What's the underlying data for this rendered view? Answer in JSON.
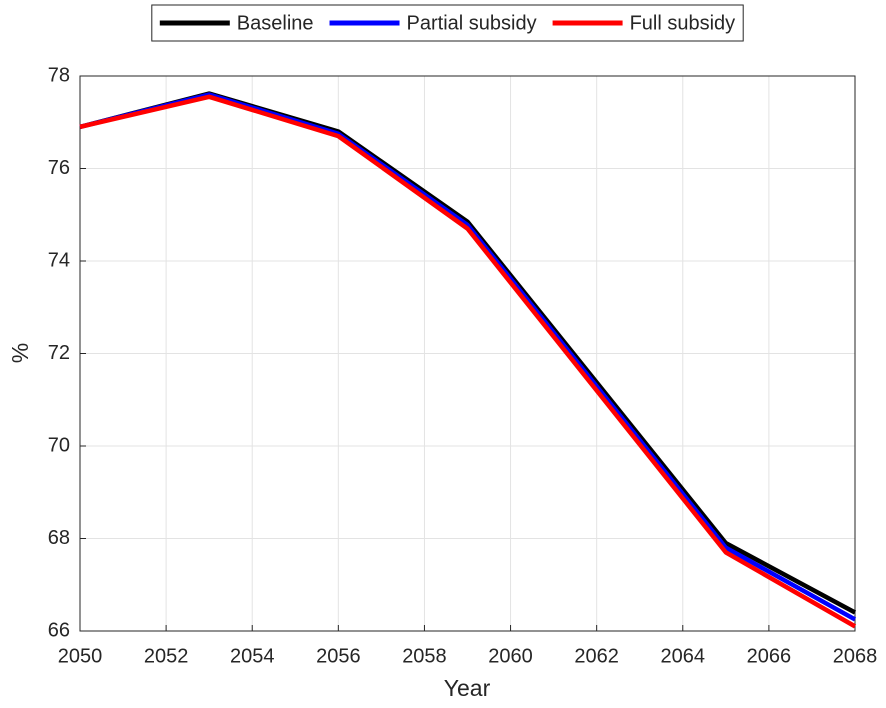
{
  "chart_data": {
    "type": "line",
    "x": [
      2050,
      2053,
      2056,
      2059,
      2065,
      2068
    ],
    "series": [
      {
        "name": "Baseline",
        "color": "#000000",
        "values": [
          76.9,
          77.62,
          76.8,
          74.85,
          67.9,
          66.4
        ]
      },
      {
        "name": "Partial subsidy",
        "color": "#0000ff",
        "values": [
          76.9,
          77.6,
          76.75,
          74.78,
          67.8,
          66.25
        ]
      },
      {
        "name": "Full subsidy",
        "color": "#ff0000",
        "values": [
          76.9,
          77.55,
          76.7,
          74.7,
          67.7,
          66.1
        ]
      }
    ],
    "xlabel": "Year",
    "ylabel": "%",
    "xlim": [
      2050,
      2068
    ],
    "xticks": [
      2050,
      2052,
      2054,
      2056,
      2058,
      2060,
      2062,
      2064,
      2066,
      2068
    ],
    "ylim": [
      66,
      78
    ],
    "yticks": [
      66,
      68,
      70,
      72,
      74,
      76,
      78
    ],
    "grid": true,
    "legend": "top"
  }
}
